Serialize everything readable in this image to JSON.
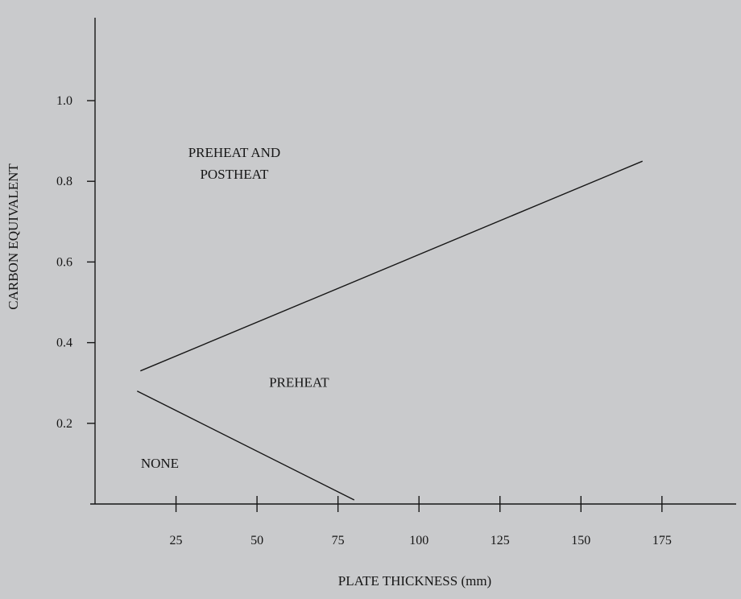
{
  "chart_data": {
    "type": "line",
    "title": "",
    "xlabel": "PLATE THICKNESS (mm)",
    "ylabel": "CARBON EQUIVALENT",
    "xlim": [
      0,
      200
    ],
    "ylim": [
      0,
      1.2
    ],
    "x_ticks": [
      {
        "value": 25,
        "label": "25"
      },
      {
        "value": 50,
        "label": "50"
      },
      {
        "value": 75,
        "label": "75"
      },
      {
        "value": 100,
        "label": "100"
      },
      {
        "value": 125,
        "label": "125"
      },
      {
        "value": 150,
        "label": "150"
      },
      {
        "value": 175,
        "label": "175"
      }
    ],
    "y_ticks": [
      {
        "value": 0.2,
        "label": "0.2"
      },
      {
        "value": 0.4,
        "label": "0.4"
      },
      {
        "value": 0.6,
        "label": "0.6"
      },
      {
        "value": 0.8,
        "label": "0.8"
      },
      {
        "value": 1.0,
        "label": "1.0"
      }
    ],
    "series": [
      {
        "x": [
          14,
          169
        ],
        "y": [
          0.33,
          0.85
        ]
      },
      {
        "x": [
          13,
          80
        ],
        "y": [
          0.28,
          0.01
        ]
      }
    ],
    "region_labels": [
      {
        "lines": [
          "PREHEAT AND",
          "POSTHEAT"
        ],
        "x": 43,
        "y": 0.86
      },
      {
        "lines": [
          "PREHEAT"
        ],
        "x": 63,
        "y": 0.29
      },
      {
        "lines": [
          "NONE"
        ],
        "x": 20,
        "y": 0.09
      }
    ],
    "colors": {
      "line": "#161616",
      "background": "#c9cacc"
    },
    "grid": false,
    "legend": "none"
  }
}
